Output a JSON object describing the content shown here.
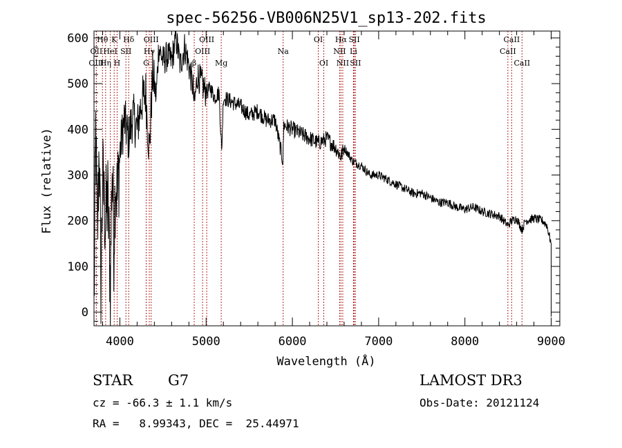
{
  "chart_data": {
    "type": "line",
    "title": "spec-56256-VB006N25V1_sp13-202.fits",
    "xlabel": "Wavelength (Å)",
    "ylabel": "Flux (relative)",
    "xlim": [
      3700,
      9100
    ],
    "ylim": [
      -30,
      615
    ],
    "x_ticks": [
      4000,
      5000,
      6000,
      7000,
      8000,
      9000
    ],
    "x_tick_labels": [
      "4000",
      "5000",
      "6000",
      "7000",
      "8000",
      "9000"
    ],
    "y_ticks": [
      0,
      100,
      200,
      300,
      400,
      500,
      600
    ],
    "y_tick_labels": [
      "0",
      "100",
      "200",
      "300",
      "400",
      "500",
      "600"
    ],
    "grid": false,
    "series": [
      {
        "name": "flux",
        "color": "#000000",
        "x": [
          3700,
          3720,
          3740,
          3760,
          3780,
          3800,
          3830,
          3860,
          3890,
          3910,
          3930,
          3950,
          3970,
          4000,
          4050,
          4100,
          4150,
          4200,
          4250,
          4300,
          4340,
          4380,
          4420,
          4450,
          4500,
          4550,
          4600,
          4650,
          4700,
          4750,
          4800,
          4850,
          4862,
          4900,
          4950,
          5000,
          5050,
          5100,
          5150,
          5180,
          5200,
          5300,
          5400,
          5500,
          5600,
          5700,
          5800,
          5890,
          5900,
          6000,
          6100,
          6200,
          6300,
          6400,
          6500,
          6563,
          6600,
          6700,
          6800,
          6900,
          7000,
          7100,
          7200,
          7300,
          7400,
          7500,
          7600,
          7700,
          7800,
          7900,
          8000,
          8100,
          8200,
          8300,
          8400,
          8498,
          8542,
          8600,
          8662,
          8700,
          8800,
          8900,
          8950,
          9000
        ],
        "y": [
          0,
          400,
          150,
          380,
          60,
          300,
          200,
          250,
          60,
          330,
          150,
          300,
          250,
          350,
          420,
          380,
          430,
          400,
          460,
          480,
          350,
          520,
          470,
          580,
          550,
          560,
          550,
          600,
          540,
          580,
          540,
          490,
          450,
          520,
          500,
          480,
          490,
          470,
          480,
          350,
          470,
          460,
          450,
          430,
          440,
          420,
          420,
          330,
          410,
          400,
          390,
          380,
          370,
          380,
          360,
          340,
          360,
          330,
          320,
          300,
          300,
          290,
          280,
          270,
          260,
          260,
          250,
          240,
          240,
          230,
          225,
          230,
          220,
          215,
          210,
          190,
          200,
          205,
          180,
          200,
          205,
          200,
          190,
          150
        ]
      }
    ],
    "line_markers": [
      {
        "label": "Hθ",
        "x": 3798,
        "row": 1
      },
      {
        "label": "OII",
        "x": 3727,
        "row": 2
      },
      {
        "label": "OIII",
        "x": 3727,
        "row": 3
      },
      {
        "label": "Hη",
        "x": 3835,
        "row": 3
      },
      {
        "label": "K",
        "x": 3934,
        "row": 1
      },
      {
        "label": "HeI",
        "x": 3889,
        "row": 2
      },
      {
        "label": "H",
        "x": 3968,
        "row": 3
      },
      {
        "label": "SII",
        "x": 4070,
        "row": 2
      },
      {
        "label": "Hδ",
        "x": 4102,
        "row": 1
      },
      {
        "label": "OIII",
        "x": 4363,
        "row": 1
      },
      {
        "label": "Hγ",
        "x": 4341,
        "row": 2
      },
      {
        "label": "G",
        "x": 4305,
        "row": 3
      },
      {
        "label": "OIII",
        "x": 5007,
        "row": 1
      },
      {
        "label": "OIII",
        "x": 4959,
        "row": 2
      },
      {
        "label": "β",
        "x": 4862,
        "row": 3
      },
      {
        "label": "Mg",
        "x": 5175,
        "row": 3
      },
      {
        "label": "Na",
        "x": 5893,
        "row": 2
      },
      {
        "label": "OI",
        "x": 6300,
        "row": 1
      },
      {
        "label": "OI",
        "x": 6364,
        "row": 3
      },
      {
        "label": "Hα",
        "x": 6563,
        "row": 1
      },
      {
        "label": "NII",
        "x": 6548,
        "row": 2
      },
      {
        "label": "NII",
        "x": 6584,
        "row": 3
      },
      {
        "label": "SII",
        "x": 6717,
        "row": 1
      },
      {
        "label": "Li",
        "x": 6708,
        "row": 2
      },
      {
        "label": "SII",
        "x": 6731,
        "row": 3
      },
      {
        "label": "CaII",
        "x": 8542,
        "row": 1
      },
      {
        "label": "CaII",
        "x": 8498,
        "row": 2
      },
      {
        "label": "CaII",
        "x": 8662,
        "row": 3
      }
    ]
  },
  "info": {
    "object_class": "STAR",
    "subclass": "G7",
    "survey": "LAMOST DR3",
    "redshift_line": "cz = -66.3 ± 1.1 km/s",
    "obs_date_line": "Obs-Date: 20121124",
    "coords_line": "RA =   8.99343, DEC =  25.44971"
  },
  "colors": {
    "spectrum": "#000000",
    "marker_line": "#b22222",
    "axes": "#000000"
  }
}
